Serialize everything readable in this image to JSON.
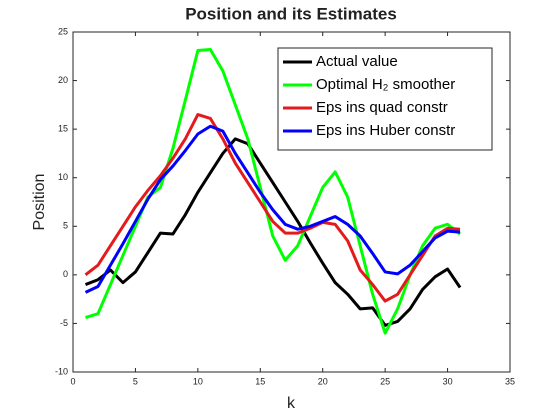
{
  "chart_data": {
    "type": "line",
    "title": "Position and its Estimates",
    "xlabel": "k",
    "ylabel": "Position",
    "x": [
      1,
      2,
      3,
      4,
      5,
      6,
      7,
      8,
      9,
      10,
      11,
      12,
      13,
      14,
      15,
      16,
      17,
      18,
      19,
      20,
      21,
      22,
      23,
      24,
      25,
      26,
      27,
      28,
      29,
      30,
      31
    ],
    "series": [
      {
        "name": "Actual value",
        "color": "#000000",
        "values": [
          -1.0,
          -0.5,
          0.5,
          -0.8,
          0.3,
          2.3,
          4.3,
          4.2,
          6.2,
          8.5,
          10.5,
          12.5,
          14,
          13.5,
          11.5,
          9.5,
          7.5,
          5.5,
          3.3,
          1.2,
          -0.8,
          -2,
          -3.5,
          -3.4,
          -5.2,
          -4.8,
          -3.5,
          -1.5,
          -0.2,
          0.6,
          -1.3
        ]
      },
      {
        "name": "Optimal H₂ smoother",
        "color": "#00ff00",
        "values": [
          -4.4,
          -4,
          -1,
          2,
          5,
          8,
          9,
          13,
          18,
          23.1,
          23.2,
          21,
          17.5,
          14,
          9,
          4,
          1.5,
          3,
          6,
          9,
          10.6,
          8,
          3,
          -2,
          -6,
          -3.5,
          0,
          3,
          4.8,
          5.2,
          4.2
        ]
      },
      {
        "name": "Eps ins quad constr",
        "color": "#e41a1c",
        "values": [
          0,
          1,
          3,
          5,
          7,
          8.7,
          10.2,
          12,
          14,
          16.5,
          16.1,
          14,
          11.5,
          9.5,
          7.5,
          5.5,
          4.3,
          4.3,
          4.8,
          5.4,
          5.2,
          3.5,
          0.5,
          -1,
          -2.7,
          -2,
          0,
          2,
          4,
          4.8,
          4.7
        ]
      },
      {
        "name": "Eps ins Huber constr",
        "color": "#0000ff",
        "values": [
          -1.8,
          -1.2,
          1,
          3.2,
          5.5,
          7.8,
          9.8,
          11.2,
          12.8,
          14.5,
          15.3,
          14.8,
          12.5,
          10.5,
          8.5,
          6.7,
          5.2,
          4.7,
          5,
          5.5,
          6,
          5.2,
          4,
          2.2,
          0.3,
          0.1,
          1,
          2.4,
          3.8,
          4.5,
          4.4
        ]
      }
    ],
    "xlim": [
      0,
      35
    ],
    "xticks": [
      0,
      5,
      10,
      15,
      20,
      25,
      30,
      35
    ],
    "ylim": [
      -10,
      25
    ],
    "yticks": [
      -10,
      -5,
      0,
      5,
      10,
      15,
      20,
      25
    ],
    "grid": false,
    "legend": "top-right"
  }
}
